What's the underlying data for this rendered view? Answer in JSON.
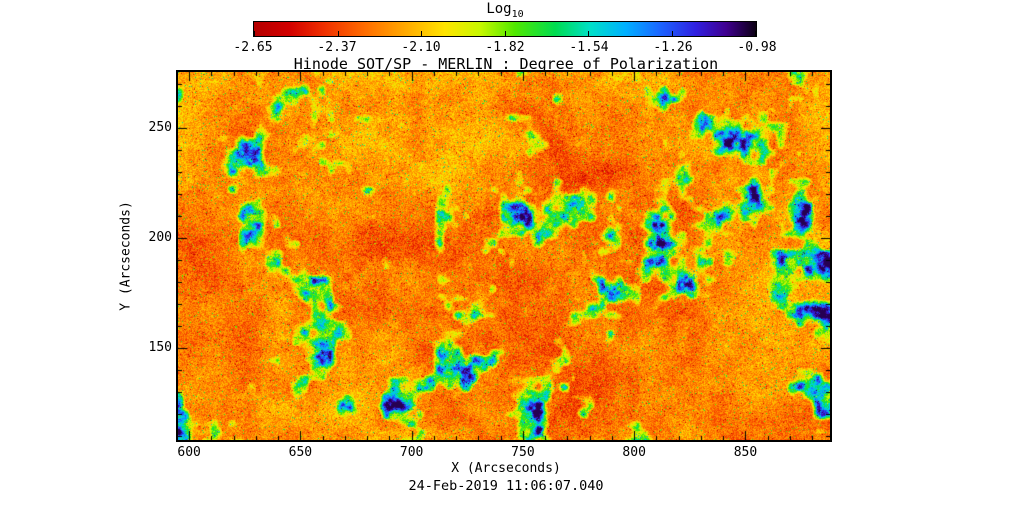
{
  "chart_data": {
    "type": "heatmap",
    "title": "Hinode SOT/SP - MERLIN : Degree of Polarization",
    "xlabel": "X (Arcseconds)",
    "ylabel": "Y (Arcseconds)",
    "caption": "24-Feb-2019 11:06:07.040",
    "x_range": [
      595,
      888
    ],
    "y_range": [
      108,
      275.5
    ],
    "xtick_values": [
      600,
      650,
      700,
      750,
      800,
      850
    ],
    "xtick_labels": [
      "600",
      "650",
      "700",
      "750",
      "800",
      "850"
    ],
    "ytick_values": [
      150,
      200,
      250
    ],
    "ytick_labels": [
      "150",
      "200",
      "250"
    ],
    "grid": false,
    "colorbar": {
      "label": "Log",
      "label_sub": "10",
      "scale_min": -2.65,
      "scale_max": -0.98,
      "tick_labels": [
        "-2.65",
        "-2.37",
        "-2.10",
        "-1.82",
        "-1.54",
        "-1.26",
        "-0.98"
      ],
      "stops": [
        [
          0.0,
          "#b40000"
        ],
        [
          0.07,
          "#d20000"
        ],
        [
          0.14,
          "#f03000"
        ],
        [
          0.22,
          "#ff6c00"
        ],
        [
          0.3,
          "#ffa800"
        ],
        [
          0.38,
          "#ffe400"
        ],
        [
          0.45,
          "#c8f800"
        ],
        [
          0.52,
          "#50e800"
        ],
        [
          0.6,
          "#00dc50"
        ],
        [
          0.67,
          "#00e0c8"
        ],
        [
          0.74,
          "#00b0ff"
        ],
        [
          0.81,
          "#1c64ff"
        ],
        [
          0.88,
          "#3020e0"
        ],
        [
          0.94,
          "#400090"
        ],
        [
          1.0,
          "#0c0014"
        ]
      ]
    },
    "content_summary": "Quiet-sun solar degree-of-polarization map: predominantly red-orange grainy background (log10 near -2.5) with scattered green/cyan/blue magnetic network patches (log10 up to about -1.0)"
  }
}
